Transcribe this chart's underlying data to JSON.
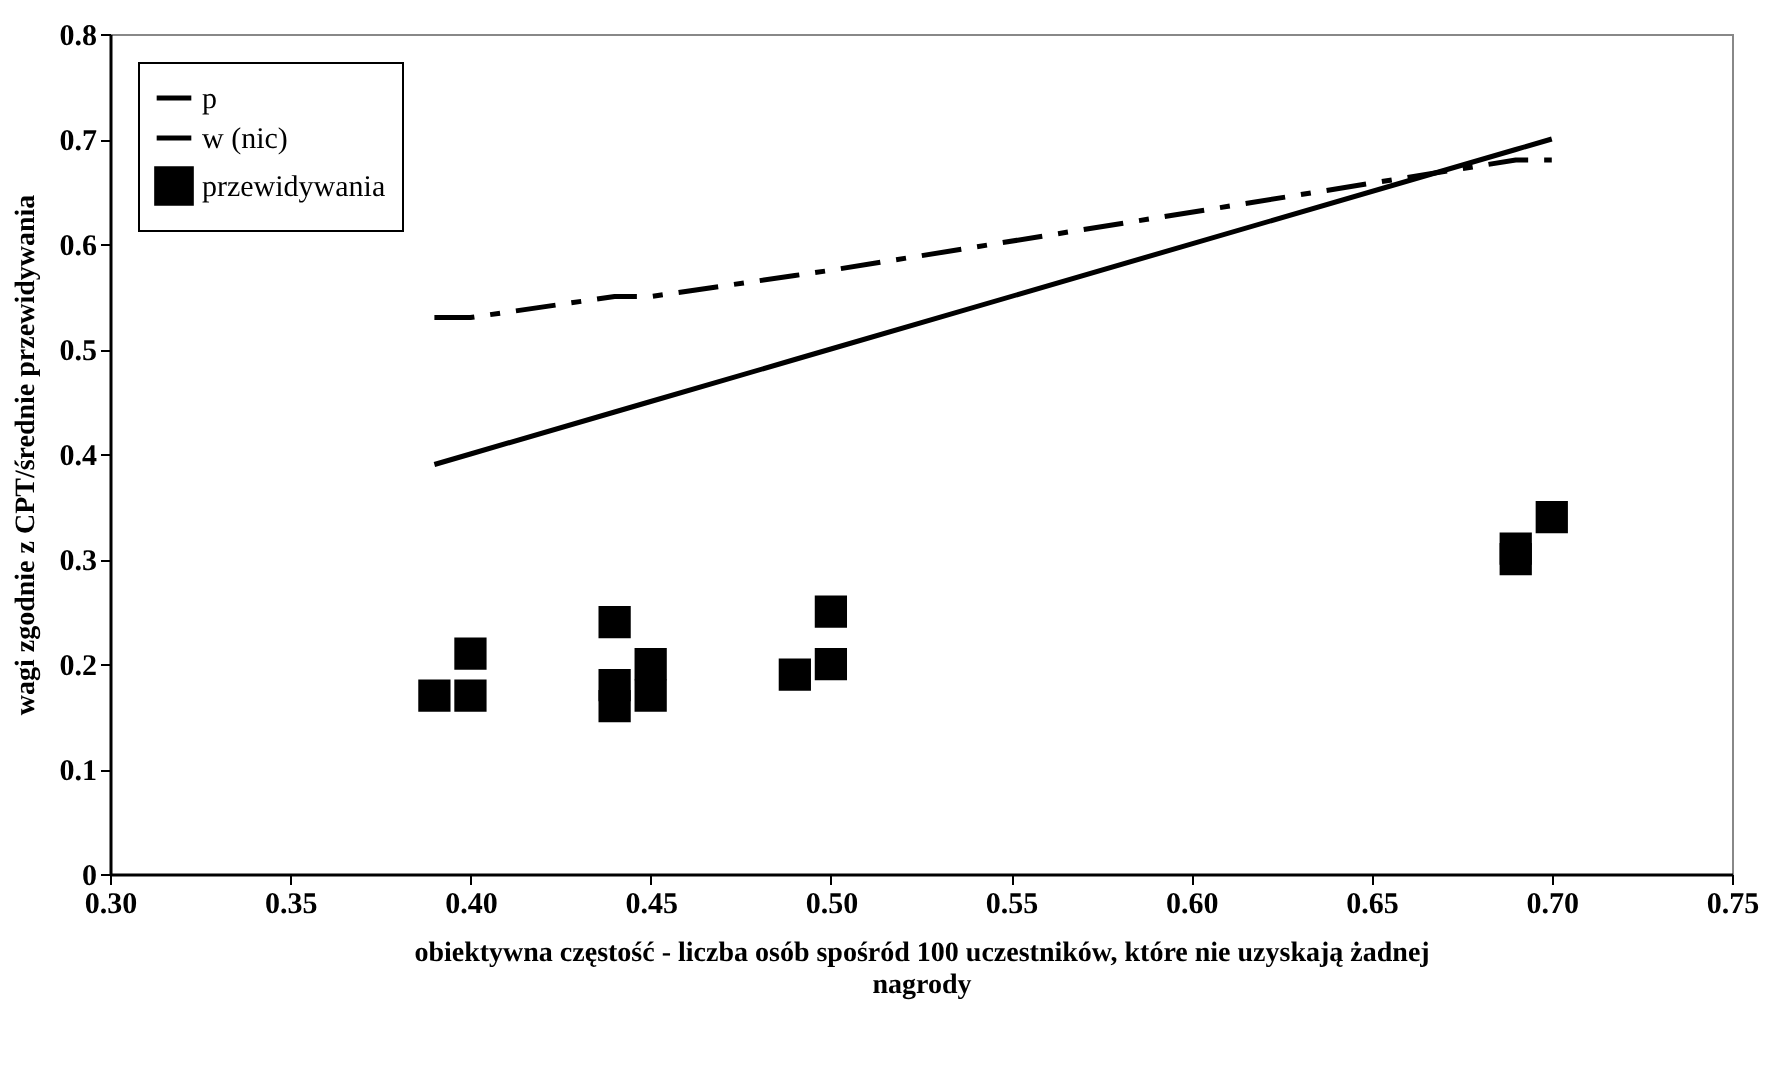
{
  "chart_data": {
    "type": "scatter",
    "xlabel": "obiektywna częstość - liczba osób spośród 100 uczestników, które nie uzyskają żadnej nagrody",
    "ylabel": "wagi zgodnie z CPT/średnie przewidywania",
    "xlim": [
      0.3,
      0.75
    ],
    "xticks": [
      {
        "value": 0.3,
        "label": "0.30"
      },
      {
        "value": 0.35,
        "label": "0.35"
      },
      {
        "value": 0.4,
        "label": "0.40"
      },
      {
        "value": 0.45,
        "label": "0.45"
      },
      {
        "value": 0.5,
        "label": "0.50"
      },
      {
        "value": 0.55,
        "label": "0.55"
      },
      {
        "value": 0.6,
        "label": "0.60"
      },
      {
        "value": 0.65,
        "label": "0.65"
      },
      {
        "value": 0.7,
        "label": "0.70"
      },
      {
        "value": 0.75,
        "label": "0.75"
      }
    ],
    "ylim": [
      0,
      0.8
    ],
    "yticks": [
      0,
      0.1,
      0.2,
      0.3,
      0.4,
      0.5,
      0.6,
      0.7,
      0.8
    ],
    "grid": false,
    "legend": "top left",
    "series": [
      {
        "name": "p",
        "type": "line",
        "line_style": "solid",
        "color": "#000000",
        "x": [
          0.39,
          0.4,
          0.44,
          0.45,
          0.49,
          0.5,
          0.69,
          0.7
        ],
        "values": [
          0.39,
          0.4,
          0.44,
          0.45,
          0.49,
          0.5,
          0.69,
          0.7
        ]
      },
      {
        "name": "w (nic)",
        "type": "line",
        "line_style": "dashed",
        "color": "#000000",
        "x": [
          0.39,
          0.4,
          0.44,
          0.45,
          0.49,
          0.5,
          0.69,
          0.7
        ],
        "values": [
          0.53,
          0.53,
          0.55,
          0.55,
          0.57,
          0.575,
          0.68,
          0.68
        ]
      },
      {
        "name": "przewidywania",
        "type": "scatter",
        "marker": "square",
        "color": "#000000",
        "x": [
          0.39,
          0.4,
          0.4,
          0.44,
          0.44,
          0.44,
          0.45,
          0.45,
          0.49,
          0.5,
          0.5,
          0.69,
          0.69,
          0.7
        ],
        "values": [
          0.17,
          0.17,
          0.21,
          0.24,
          0.18,
          0.16,
          0.2,
          0.17,
          0.19,
          0.25,
          0.2,
          0.31,
          0.3,
          0.34
        ]
      }
    ]
  }
}
